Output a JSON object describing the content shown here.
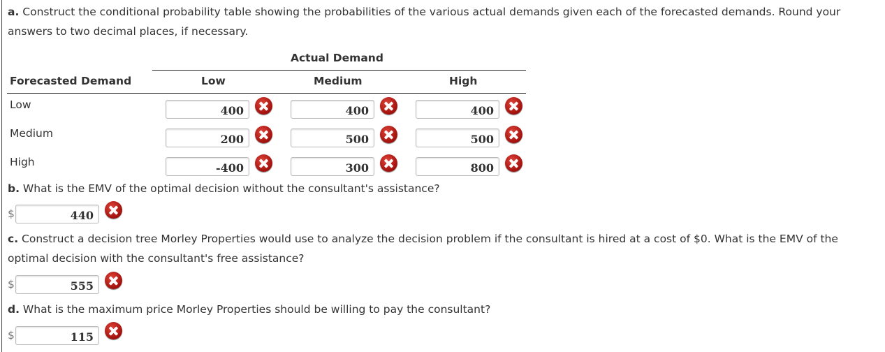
{
  "part_a": {
    "label": "a.",
    "text": "Construct the conditional probability table showing the probabilities of the various actual demands given each of the forecasted demands. Round your",
    "text2": "answers to two decimal places, if necessary.",
    "actual_demand": "Actual Demand",
    "forecasted_demand": "Forecasted Demand",
    "columns": [
      "Low",
      "Medium",
      "High"
    ],
    "rows": [
      {
        "label": "Low",
        "values": [
          "400",
          "400",
          "400"
        ]
      },
      {
        "label": "Medium",
        "values": [
          "200",
          "500",
          "500"
        ]
      },
      {
        "label": "High",
        "values": [
          "-400",
          "300",
          "800"
        ]
      }
    ]
  },
  "part_b": {
    "label": "b.",
    "text": "What is the EMV of the optimal decision without the consultant's assistance?",
    "currency": "$",
    "value": "440"
  },
  "part_c": {
    "label": "c.",
    "text": "Construct a decision tree Morley Properties would use to analyze the decision problem if the consultant is hired at a cost of $0. What is the EMV of the",
    "text2": "optimal decision with the consultant's free assistance?",
    "currency": "$",
    "value": "555"
  },
  "part_d": {
    "label": "d.",
    "text": "What is the maximum price Morley Properties should be willing to pay the consultant?",
    "currency": "$",
    "value": "115"
  },
  "status_icon": "incorrect-x-icon"
}
